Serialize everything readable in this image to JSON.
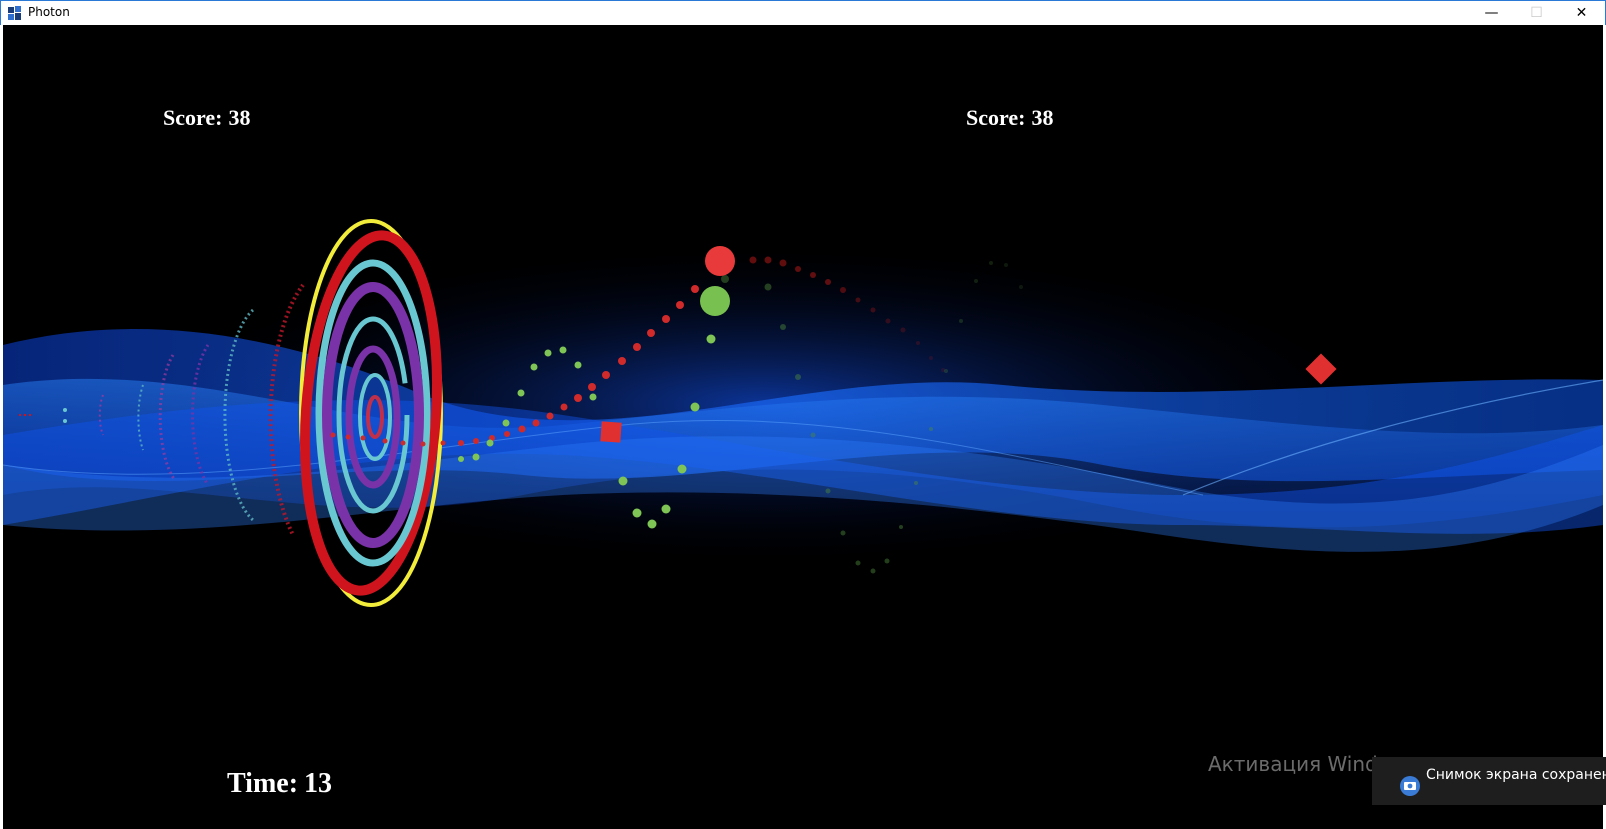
{
  "window": {
    "title": "Photon",
    "controls": {
      "minimize": "—",
      "maximize": "☐",
      "close": "✕"
    }
  },
  "hud": {
    "score_left": {
      "label": "Score:",
      "value": "38"
    },
    "score_right": {
      "label": "Score:",
      "value": "38"
    },
    "time": {
      "label": "Time:",
      "value": "13"
    }
  },
  "overlay": {
    "activation_watermark": "Активация Windows",
    "toast_text": "Снимок экрана сохранен"
  },
  "colors": {
    "background": "#000000",
    "wave_blue": "#1464ff",
    "ring_yellow": "#f2ec3a",
    "ring_red": "#d0141e",
    "ring_cyan": "#68c7d0",
    "ring_purple": "#7a32a8",
    "player_red": "#e83a3a",
    "player_green": "#78c050"
  },
  "icons": [
    "photon-app-icon",
    "camera-icon"
  ]
}
